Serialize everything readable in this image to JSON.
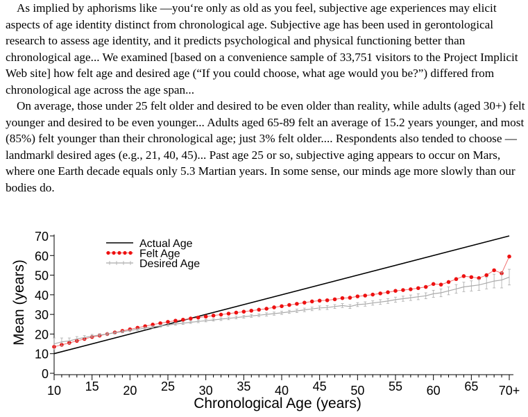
{
  "paragraphs": [
    "As implied by aphorisms like —you‘re only as old as you feel, subjective age experiences may elicit aspects of age identity distinct from chronological age. Subjective age has been used in gerontological research to assess age identity, and it predicts psychological and physical functioning better than chronological age... We examined [based on a convenience sample of 33,751 visitors to the Project Implicit Web site] how felt age and desired age (“If you could choose, what age would you be?”) differed from chronological age across the age span...",
    "On average, those under 25 felt older and desired to be even older than reality, while adults (aged 30+) felt younger and desired to be even younger... Adults aged 65-89 felt an average of 15.2 years younger, and most (85%) felt younger than their chronological age; just 3% felt older.... Respondents also tended to choose —landmark‖ desired ages (e.g., 21, 40, 45)... Past age 25 or so, subjective aging appears to occur on Mars, where one Earth decade equals only 5.3 Martian years. In some sense, our minds age more slowly than our bodies do."
  ],
  "chart_data": {
    "type": "line",
    "xlabel": "Chronological Age (years)",
    "ylabel": "Mean (years)",
    "xlim": [
      10,
      70
    ],
    "ylim": [
      0,
      70
    ],
    "x_ticks": [
      {
        "value": 10,
        "label": "10"
      },
      {
        "value": 15,
        "label": "15"
      },
      {
        "value": 20,
        "label": "20"
      },
      {
        "value": 25,
        "label": "25"
      },
      {
        "value": 30,
        "label": "30"
      },
      {
        "value": 35,
        "label": "35"
      },
      {
        "value": 40,
        "label": "40"
      },
      {
        "value": 45,
        "label": "45"
      },
      {
        "value": 50,
        "label": "50"
      },
      {
        "value": 55,
        "label": "55"
      },
      {
        "value": 60,
        "label": "60"
      },
      {
        "value": 65,
        "label": "65"
      },
      {
        "value": 70,
        "label": "70+"
      }
    ],
    "y_ticks": [
      "0",
      "10",
      "20",
      "30",
      "40",
      "50",
      "60",
      "70"
    ],
    "legend_position": "top-left",
    "series": [
      {
        "name": "Actual Age",
        "style": "line",
        "color": "#000000",
        "x": [
          10,
          70
        ],
        "y": [
          10,
          70
        ]
      },
      {
        "name": "Felt Age",
        "style": "dotted-markers",
        "color": "#ee1111",
        "x": [
          10,
          11,
          12,
          13,
          14,
          15,
          16,
          17,
          18,
          19,
          20,
          21,
          22,
          23,
          24,
          25,
          26,
          27,
          28,
          29,
          30,
          31,
          32,
          33,
          34,
          35,
          36,
          37,
          38,
          39,
          40,
          41,
          42,
          43,
          44,
          45,
          46,
          47,
          48,
          49,
          50,
          51,
          52,
          53,
          54,
          55,
          56,
          57,
          58,
          59,
          60,
          61,
          62,
          63,
          64,
          65,
          66,
          67,
          68,
          69,
          70
        ],
        "y": [
          13.5,
          14.5,
          15.5,
          16.5,
          17.5,
          18.5,
          19.2,
          20,
          20.8,
          21.6,
          22.4,
          23.2,
          24,
          24.8,
          25.5,
          26.2,
          26.8,
          27.3,
          27.9,
          28.4,
          28.9,
          29.4,
          29.9,
          30.4,
          30.9,
          31.4,
          31.9,
          32.4,
          32.9,
          33.6,
          34.2,
          34.8,
          35.4,
          36,
          36.6,
          37,
          37.2,
          37.7,
          38.3,
          38.5,
          39.2,
          39.6,
          40.1,
          40.7,
          41.3,
          42,
          42.4,
          42.8,
          43.4,
          44,
          45.5,
          45.2,
          46.5,
          48,
          49.5,
          49,
          48.5,
          50,
          52.5,
          51,
          59.5
        ]
      },
      {
        "name": "Desired Age",
        "style": "line-errorbars",
        "color": "#aaaaaa",
        "x": [
          10,
          11,
          12,
          13,
          14,
          15,
          16,
          17,
          18,
          19,
          20,
          21,
          22,
          23,
          24,
          25,
          26,
          27,
          28,
          29,
          30,
          31,
          32,
          33,
          34,
          35,
          36,
          37,
          38,
          39,
          40,
          41,
          42,
          43,
          44,
          45,
          46,
          47,
          48,
          49,
          50,
          51,
          52,
          53,
          54,
          55,
          56,
          57,
          58,
          59,
          60,
          61,
          62,
          63,
          64,
          65,
          66,
          67,
          68,
          69,
          70
        ],
        "y": [
          15,
          16,
          16.5,
          17.5,
          18.2,
          19,
          19.5,
          20,
          20.6,
          21.2,
          21.8,
          22.4,
          23,
          23.6,
          24.1,
          24.6,
          25.1,
          25.5,
          26,
          26.4,
          26.8,
          27.2,
          27.6,
          28,
          28.4,
          28.8,
          29.2,
          29.6,
          30,
          30.4,
          30.8,
          31.3,
          31.8,
          32.3,
          32.8,
          33.3,
          33.5,
          34,
          34.5,
          34,
          35,
          35.3,
          35.8,
          36.3,
          36.8,
          37.5,
          38,
          38.5,
          39,
          39.5,
          40.5,
          41,
          42,
          43,
          44,
          44.5,
          45,
          46,
          47,
          47.5,
          49
        ],
        "err": [
          3,
          2,
          1.5,
          1.2,
          1,
          0.8,
          0.7,
          0.6,
          0.6,
          0.6,
          0.6,
          0.6,
          0.6,
          0.6,
          0.6,
          0.6,
          0.6,
          0.6,
          0.6,
          0.6,
          0.6,
          0.6,
          0.7,
          0.7,
          0.7,
          0.7,
          0.7,
          0.7,
          0.8,
          0.8,
          0.8,
          0.8,
          0.9,
          0.9,
          0.9,
          1,
          1,
          1,
          1,
          1,
          1,
          1.1,
          1.1,
          1.2,
          1.2,
          1.3,
          1.3,
          1.4,
          1.5,
          1.5,
          1.8,
          2,
          2,
          2.2,
          2.4,
          2.6,
          2.8,
          3,
          3.5,
          4,
          4
        ]
      }
    ]
  }
}
